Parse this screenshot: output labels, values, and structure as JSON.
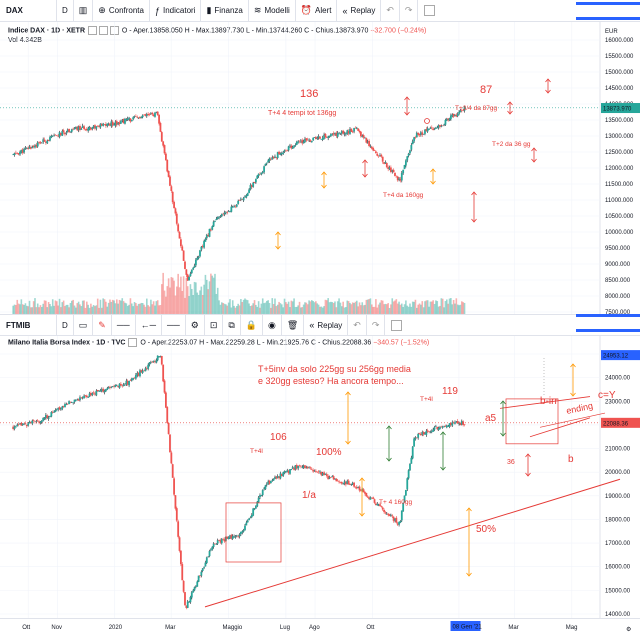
{
  "colors": {
    "up": "#26a69a",
    "down": "#ef5350",
    "annot": "#e53935",
    "orange": "#ff9800",
    "green": "#2e7d32",
    "accent": "#2962ff",
    "candle_dark": "#131722"
  },
  "top_toolbar": {
    "symbol": "DAX",
    "interval": "D",
    "compare": "Confronta",
    "indicators": "Indicatori",
    "finance": "Finanza",
    "models": "Modelli",
    "alert": "Alert",
    "replay": "Replay"
  },
  "bottom_toolbar": {
    "symbol": "FTMIB",
    "interval": "D",
    "replay": "Replay"
  },
  "top_chart": {
    "legend_title": "Indice DAX · 1D · XETR",
    "ohlc": "O - Aper.13858.050  H - Max.13897.730  L - Min.13744.260  C - Chius.13873.970",
    "change": "−32.700 (−0.24%)",
    "vol_label": "Vol",
    "vol_value": "4.342B",
    "currency": "EUR",
    "last_price": "13873.970",
    "price_ticks": [
      "16000.000",
      "15500.000",
      "15000.000",
      "14500.000",
      "14000.000",
      "13500.000",
      "13000.000",
      "12500.000",
      "12000.000",
      "11500.000",
      "11000.000",
      "10500.000",
      "10000.000",
      "9500.000",
      "9000.000",
      "8500.000",
      "8000.000",
      "7500.000"
    ],
    "annotations": {
      "a1": "136",
      "a2": "T+4  4 tempi tot 136gg",
      "a3": "87",
      "a4": "T+3/4 da 87gg",
      "a5": "T+2 da 36 gg",
      "a6": "T+4 da 160gg"
    }
  },
  "bottom_chart": {
    "legend_title": "Milano Italia Borsa Index · 1D · TVC",
    "ohlc": "O - Aper.22253.07  H - Max.22259.28  L - Min.21925.76  C - Chius.22088.36",
    "change": "−340.57 (−1.52%)",
    "price_ticks": [
      "25000.00",
      "24000.00",
      "23000.00",
      "22000.00",
      "21000.00",
      "20000.00",
      "19000.00",
      "18000.00",
      "17000.00",
      "16000.00",
      "15000.00",
      "14000.00"
    ],
    "high_label": "24953.12",
    "last_price": "22088.36",
    "annotations": {
      "note1": "T+5inv da solo 225gg su 256gg media",
      "note2": "e 320gg esteso?  Ha ancora tempo...",
      "n106": "106",
      "t4a": "T+4l",
      "n100": "100%",
      "one_a": "1/a",
      "n119": "119",
      "t4b": "T+4l",
      "a5": "a5",
      "birr": "b-irr",
      "ending": "ending",
      "cy": "c=Y",
      "n36": "36",
      "b": "b",
      "t4c": "T+ 4 160gg",
      "n50": "50%"
    }
  },
  "x_axis": {
    "ticks": [
      "Ott",
      "Nov",
      "2020",
      "Mar",
      "Maggio",
      "Lug",
      "Ago",
      "Ott",
      "9",
      "Mar",
      "Mag"
    ],
    "date_badge": "08 Gen '21"
  },
  "chart_data": [
    {
      "type": "candlestick",
      "title": "Indice DAX · 1D · XETR",
      "ylim": [
        7500,
        16000
      ],
      "x": [
        "2019-09-15",
        "2019-10-15",
        "2019-11-15",
        "2019-12-15",
        "2020-01-15",
        "2020-02-15",
        "2020-03-18",
        "2020-04-15",
        "2020-05-15",
        "2020-06-15",
        "2020-07-15",
        "2020-08-15",
        "2020-09-15",
        "2020-10-30",
        "2020-11-15",
        "2020-12-15",
        "2021-01-08"
      ],
      "close": [
        12400,
        12800,
        13200,
        13300,
        13500,
        13700,
        8500,
        10300,
        11000,
        12300,
        12800,
        13000,
        13200,
        11600,
        13000,
        13400,
        13874
      ]
    },
    {
      "type": "candlestick",
      "title": "Milano Italia Borsa Index · 1D · TVC",
      "ylim": [
        14000,
        25000
      ],
      "x": [
        "2019-09-15",
        "2019-10-15",
        "2019-11-15",
        "2019-12-15",
        "2020-01-15",
        "2020-02-19",
        "2020-03-16",
        "2020-04-15",
        "2020-05-15",
        "2020-06-10",
        "2020-07-15",
        "2020-08-15",
        "2020-09-15",
        "2020-10-30",
        "2020-11-15",
        "2020-12-15",
        "2021-01-08"
      ],
      "close": [
        21900,
        22200,
        23000,
        23400,
        23800,
        24953,
        14200,
        17000,
        17400,
        19500,
        20300,
        19800,
        19400,
        17800,
        21500,
        22000,
        22088
      ]
    }
  ]
}
